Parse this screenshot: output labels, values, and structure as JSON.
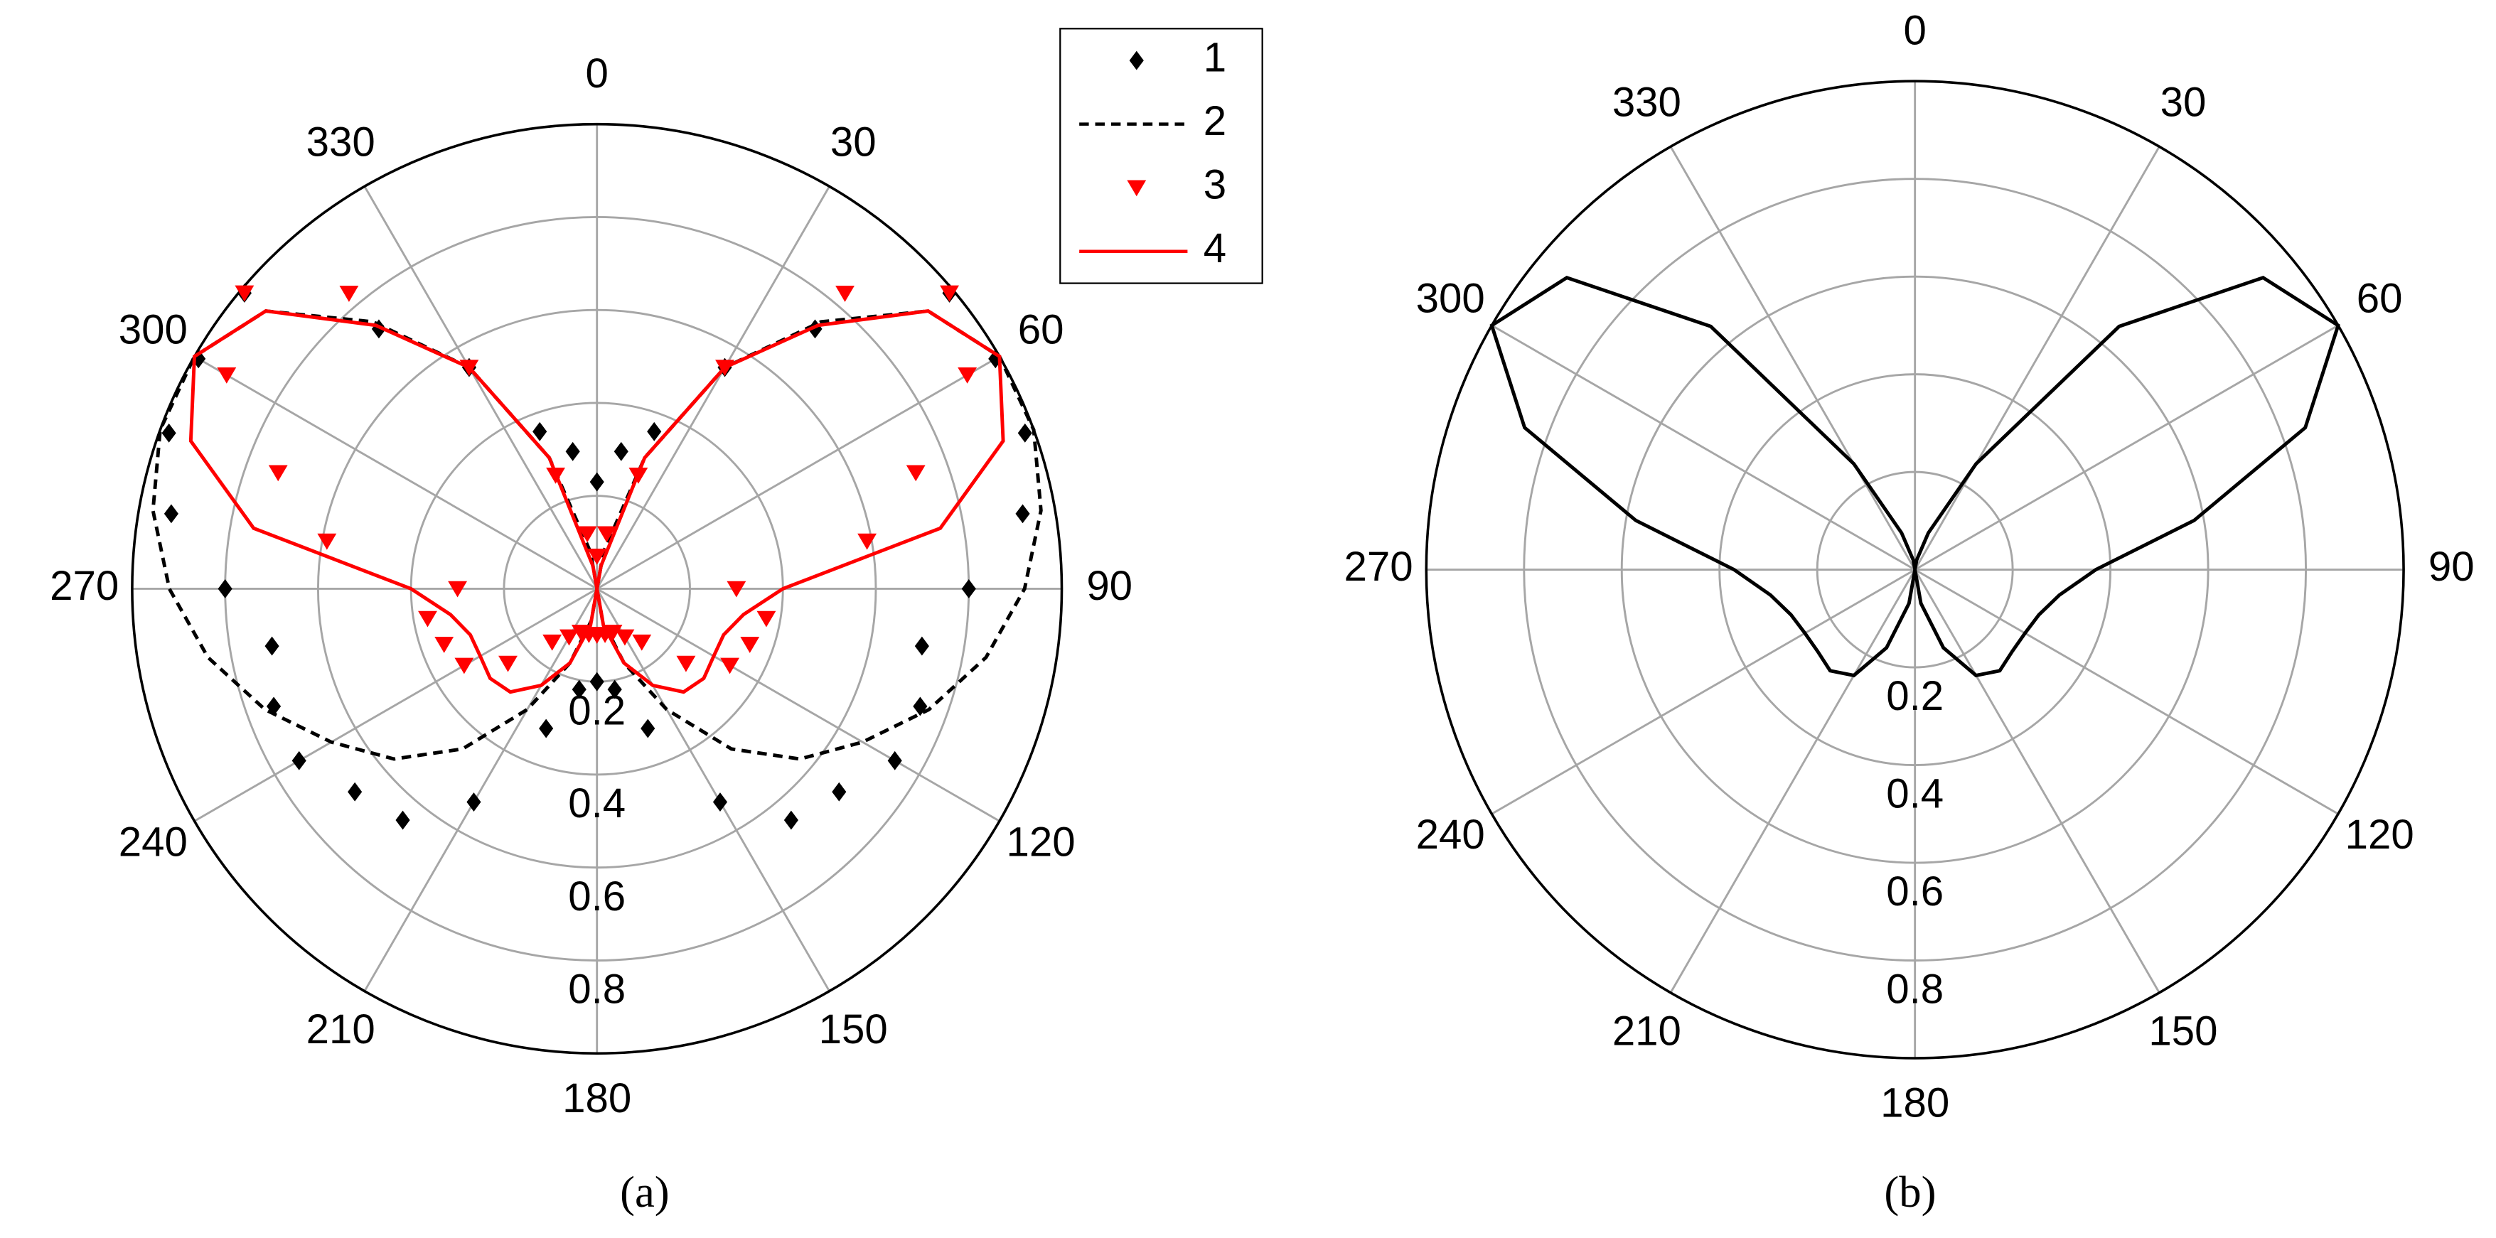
{
  "chart_data": [
    {
      "type": "polar",
      "caption": "(a)",
      "theta_direction": "clockwise",
      "theta_zero": "top",
      "rlim": [
        0,
        1
      ],
      "rticks": [
        0.2,
        0.4,
        0.6,
        0.8
      ],
      "thetaticks": [
        0,
        30,
        60,
        90,
        120,
        150,
        180,
        210,
        240,
        270,
        300,
        330
      ],
      "grid": true,
      "legend": "upper right",
      "theta": [
        0,
        10,
        20,
        30,
        40,
        50,
        60,
        70,
        80,
        90,
        100,
        110,
        120,
        130,
        140,
        150,
        160,
        170,
        180,
        190,
        200,
        210,
        220,
        230,
        240,
        250,
        260,
        270,
        280,
        290,
        300,
        310,
        320,
        330,
        340,
        350
      ],
      "series": [
        {
          "name": "1",
          "color": "#000000",
          "marker": "diamond",
          "line": "none",
          "values": [
            0.23,
            0.3,
            0.36,
            0.55,
            0.73,
            0.99,
            0.99,
            0.98,
            0.93,
            0.8,
            0.71,
            0.74,
            0.74,
            0.68,
            0.65,
            0.53,
            0.32,
            0.22,
            0.2,
            0.22,
            0.32,
            0.53,
            0.65,
            0.68,
            0.74,
            0.74,
            0.71,
            0.8,
            0.93,
            0.98,
            0.99,
            0.99,
            0.73,
            0.55,
            0.36,
            0.3
          ]
        },
        {
          "name": "2",
          "color": "#000000",
          "marker": "none",
          "line": "dashed",
          "values": [
            0,
            0.08,
            0.3,
            0.55,
            0.75,
            0.93,
            1.0,
            1.0,
            0.97,
            0.92,
            0.85,
            0.76,
            0.66,
            0.57,
            0.45,
            0.3,
            0.17,
            0.07,
            0,
            0.07,
            0.17,
            0.3,
            0.45,
            0.57,
            0.66,
            0.76,
            0.85,
            0.92,
            0.97,
            1.0,
            1.0,
            0.93,
            0.75,
            0.55,
            0.3,
            0.08
          ]
        },
        {
          "name": "3",
          "color": "#ff0000",
          "marker": "triangle-down",
          "line": "none",
          "values": [
            0.07,
            0.12,
            0.26,
            0.55,
            0.83,
            0.99,
            0.92,
            0.73,
            0.59,
            0.3,
            0.37,
            0.35,
            0.33,
            0.25,
            0.15,
            0.12,
            0.1,
            0.1,
            0.1,
            0.1,
            0.1,
            0.12,
            0.15,
            0.25,
            0.33,
            0.35,
            0.37,
            0.3,
            0.59,
            0.73,
            0.92,
            0.99,
            0.83,
            0.55,
            0.26,
            0.12
          ]
        },
        {
          "name": "4",
          "color": "#ff0000",
          "marker": "none",
          "line": "solid",
          "values": [
            0,
            0.05,
            0.3,
            0.55,
            0.74,
            0.93,
            1.0,
            0.93,
            0.75,
            0.4,
            0.32,
            0.29,
            0.29,
            0.3,
            0.29,
            0.24,
            0.17,
            0.08,
            0,
            0.08,
            0.17,
            0.24,
            0.29,
            0.3,
            0.29,
            0.29,
            0.32,
            0.4,
            0.75,
            0.93,
            1.0,
            0.93,
            0.74,
            0.55,
            0.3,
            0.05
          ]
        }
      ]
    },
    {
      "type": "polar",
      "caption": "(b)",
      "theta_direction": "clockwise",
      "theta_zero": "top",
      "rlim": [
        0,
        1
      ],
      "rticks": [
        0.2,
        0.4,
        0.6,
        0.8
      ],
      "thetaticks": [
        0,
        30,
        60,
        90,
        120,
        150,
        180,
        210,
        240,
        270,
        300,
        330
      ],
      "grid": true,
      "theta": [
        0,
        10,
        20,
        30,
        40,
        50,
        60,
        70,
        80,
        90,
        100,
        110,
        120,
        130,
        140,
        150,
        160,
        170,
        180,
        190,
        200,
        210,
        220,
        230,
        240,
        250,
        260,
        270,
        280,
        290,
        300,
        310,
        320,
        330,
        340,
        350
      ],
      "series": [
        {
          "color": "#000000",
          "marker": "none",
          "line": "solid",
          "values": [
            0,
            0.02,
            0.08,
            0.25,
            0.65,
            0.93,
            1.0,
            0.85,
            0.58,
            0.37,
            0.3,
            0.27,
            0.26,
            0.26,
            0.27,
            0.25,
            0.17,
            0.07,
            0,
            0.07,
            0.17,
            0.25,
            0.27,
            0.26,
            0.26,
            0.27,
            0.3,
            0.37,
            0.58,
            0.85,
            1.0,
            0.93,
            0.65,
            0.25,
            0.08,
            0.02
          ]
        }
      ]
    }
  ]
}
